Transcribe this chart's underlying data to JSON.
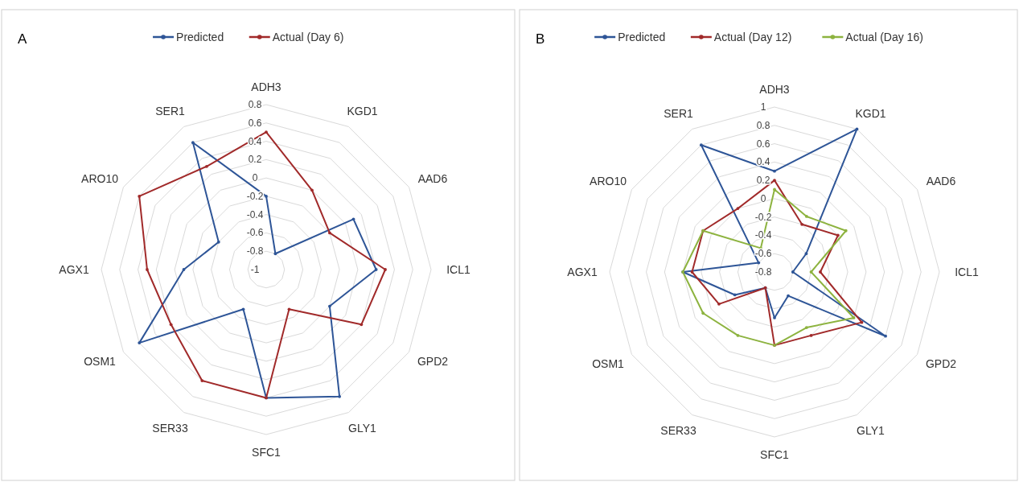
{
  "chart_data": [
    {
      "type": "radar",
      "title": "A",
      "categories": [
        "ADH3",
        "KGD1",
        "AAD6",
        "ICL1",
        "GPD2",
        "GLY1",
        "SFC1",
        "SER33",
        "OSM1",
        "AGX1",
        "ARO10",
        "SER1"
      ],
      "series": [
        {
          "name": "Predicted",
          "color": "#2e5597",
          "values": [
            -0.2,
            -0.8,
            0.1,
            0.2,
            -0.2,
            0.6,
            0.4,
            -0.5,
            0.6,
            -0.1,
            -0.4,
            0.6
          ]
        },
        {
          "name": "Actual (Day 6)",
          "color": "#a12a2a",
          "values": [
            0.5,
            0,
            -0.2,
            0.3,
            0.2,
            -0.5,
            0.4,
            0.4,
            0.2,
            0.3,
            0.6,
            0.3
          ]
        }
      ],
      "ylim": [
        -1,
        0.8
      ],
      "yticks": [
        -1,
        -0.8,
        -0.6,
        -0.4,
        -0.2,
        0,
        0.2,
        0.4,
        0.6,
        0.8
      ],
      "grid": true,
      "legend": "top",
      "marker": "circle"
    },
    {
      "type": "radar",
      "title": "B",
      "categories": [
        "ADH3",
        "KGD1",
        "AAD6",
        "ICL1",
        "GPD2",
        "GLY1",
        "SFC1",
        "SER33",
        "OSM1",
        "AGX1",
        "ARO10",
        "SER1"
      ],
      "series": [
        {
          "name": "Predicted",
          "color": "#2e5597",
          "values": [
            0.3,
            1,
            -0.4,
            -0.6,
            0.6,
            -0.5,
            -0.3,
            -0.6,
            -0.3,
            0.2,
            -0.6,
            0.8
          ]
        },
        {
          "name": "Actual (Day 12)",
          "color": "#a12a2a",
          "values": [
            0.2,
            -0.2,
            0,
            -0.3,
            0.3,
            0,
            0,
            -0.6,
            -0.1,
            0.1,
            0.1,
            0
          ]
        },
        {
          "name": "Actual (Day 16)",
          "color": "#8db33f",
          "values": [
            0.1,
            -0.1,
            0.1,
            -0.4,
            0.2,
            -0.1,
            0,
            0,
            0.1,
            0.2,
            0.1,
            -0.5
          ]
        }
      ],
      "ylim": [
        -0.8,
        1
      ],
      "yticks": [
        -0.8,
        -0.6,
        -0.4,
        -0.2,
        0,
        0.2,
        0.4,
        0.6,
        0.8,
        1
      ],
      "grid": true,
      "legend": "top",
      "marker": "circle"
    }
  ]
}
